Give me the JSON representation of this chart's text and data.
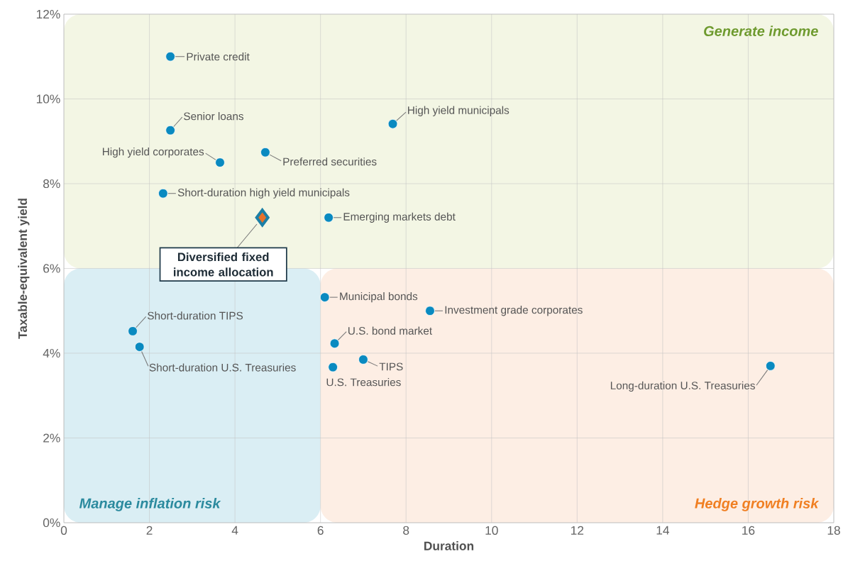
{
  "chart_data": {
    "type": "scatter",
    "xlabel": "Duration",
    "ylabel": "Taxable-equivalent yield",
    "xlim": [
      0,
      18
    ],
    "ylim": [
      0,
      12
    ],
    "xticks": [
      0,
      2,
      4,
      6,
      8,
      10,
      12,
      14,
      16,
      18
    ],
    "yticks": [
      {
        "value": 0,
        "label": "0%"
      },
      {
        "value": 2,
        "label": "2%"
      },
      {
        "value": 4,
        "label": "4%"
      },
      {
        "value": 6,
        "label": "6%"
      },
      {
        "value": 8,
        "label": "8%"
      },
      {
        "value": 10,
        "label": "10%"
      },
      {
        "value": 12,
        "label": "12%"
      }
    ],
    "grid": true,
    "legend": false,
    "marker": "circle",
    "bands": [
      {
        "axis": "y",
        "from": 6,
        "to": 12,
        "label": "Generate income",
        "color": "#f3f6e4"
      },
      {
        "axis": "x",
        "from": 0,
        "to": 6,
        "label": "Manage inflation risk",
        "color": "#daeef4"
      },
      {
        "axis": "x",
        "from": 6,
        "to": 18,
        "label": "Hedge growth risk",
        "color": "#fdeee4"
      }
    ],
    "series": [
      {
        "name": "Private credit",
        "color": "#0a8ac0",
        "x": [
          2.49
        ],
        "values": [
          11.0
        ]
      },
      {
        "name": "Senior loans",
        "color": "#0a8ac0",
        "x": [
          2.49
        ],
        "values": [
          9.26
        ]
      },
      {
        "name": "High yield corporates",
        "color": "#0a8ac0",
        "x": [
          3.65
        ],
        "values": [
          8.5
        ]
      },
      {
        "name": "Preferred securities",
        "color": "#0a8ac0",
        "x": [
          4.71
        ],
        "values": [
          8.74
        ]
      },
      {
        "name": "High yield municipals",
        "color": "#0a8ac0",
        "x": [
          7.69
        ],
        "values": [
          9.41
        ]
      },
      {
        "name": "Short-duration high yield municipals",
        "color": "#0a8ac0",
        "x": [
          2.32
        ],
        "values": [
          7.77
        ]
      },
      {
        "name": "Emerging markets debt",
        "color": "#0a8ac0",
        "x": [
          6.19
        ],
        "values": [
          7.2
        ]
      },
      {
        "name": "Diversified fixed income allocation",
        "color": "#e8712a",
        "marker": "diamond",
        "x": [
          4.64
        ],
        "values": [
          7.2
        ]
      },
      {
        "name": "Municipal bonds",
        "color": "#0a8ac0",
        "x": [
          6.1
        ],
        "values": [
          5.32
        ]
      },
      {
        "name": "Investment grade corporates",
        "color": "#0a8ac0",
        "x": [
          8.56
        ],
        "values": [
          5.0
        ]
      },
      {
        "name": "U.S. bond market",
        "color": "#0a8ac0",
        "x": [
          6.33
        ],
        "values": [
          4.23
        ]
      },
      {
        "name": "TIPS",
        "color": "#0a8ac0",
        "x": [
          7.0
        ],
        "values": [
          3.85
        ]
      },
      {
        "name": "U.S. Treasuries",
        "color": "#0a8ac0",
        "x": [
          6.29
        ],
        "values": [
          3.67
        ]
      },
      {
        "name": "Long-duration U.S. Treasuries",
        "color": "#0a8ac0",
        "x": [
          16.52
        ],
        "values": [
          3.7
        ]
      },
      {
        "name": "Short-duration TIPS",
        "color": "#0a8ac0",
        "x": [
          1.61
        ],
        "values": [
          4.52
        ]
      },
      {
        "name": "Short-duration U.S. Treasuries",
        "color": "#0a8ac0",
        "x": [
          1.77
        ],
        "values": [
          4.15
        ]
      }
    ]
  }
}
